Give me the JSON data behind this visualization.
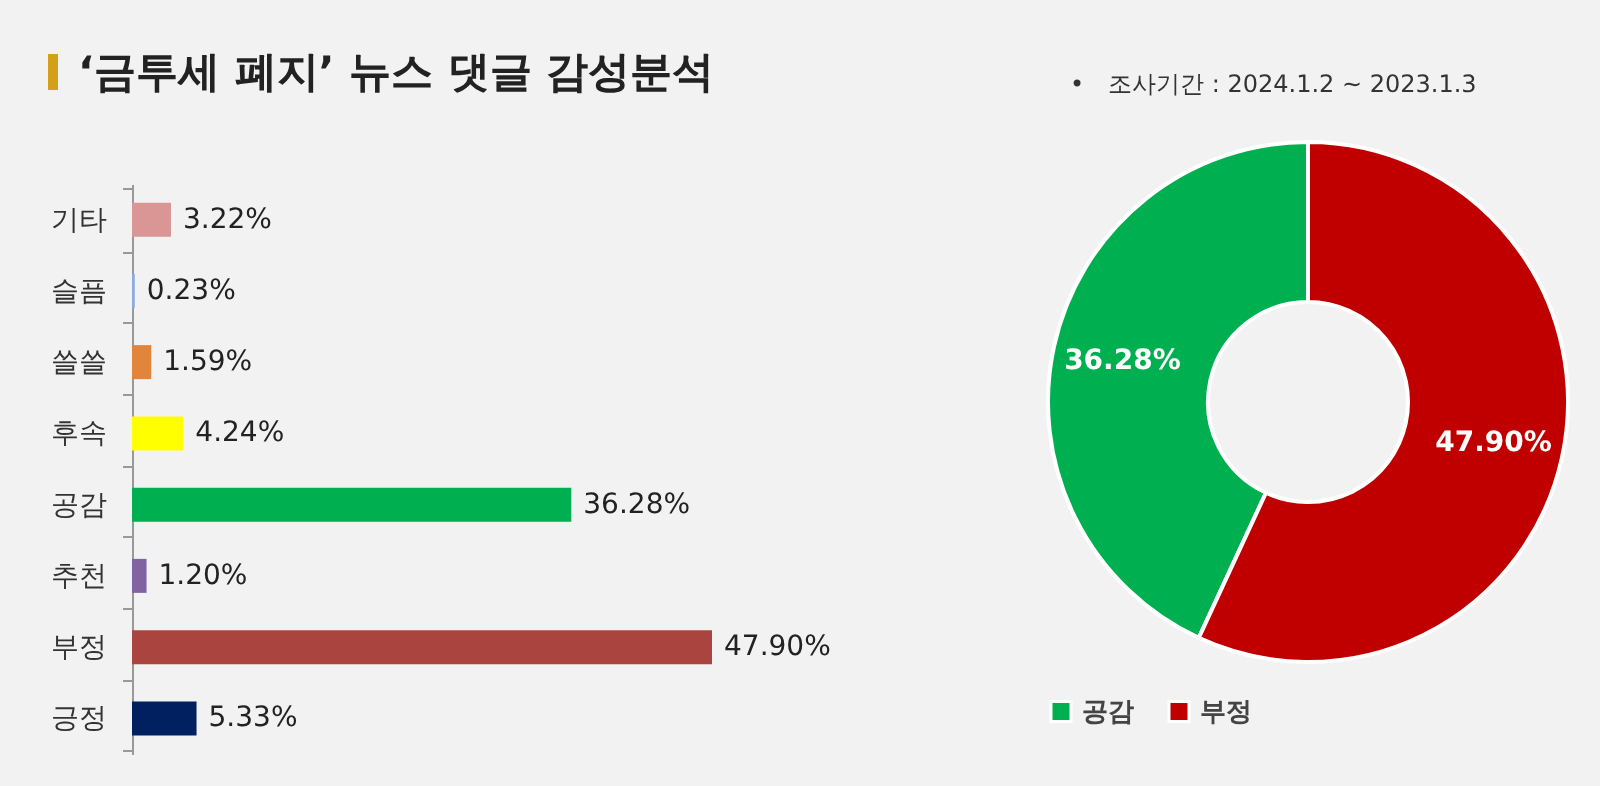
{
  "chart_data": [
    {
      "type": "bar",
      "orientation": "horizontal",
      "title": "‘금투세 폐지’ 뉴스 댓글 감성분석",
      "categories": [
        "기타",
        "슬픔",
        "쓸쓸",
        "후속",
        "공감",
        "추천",
        "부정",
        "긍정"
      ],
      "values": [
        3.22,
        0.23,
        1.59,
        4.24,
        36.28,
        1.2,
        47.9,
        5.33
      ],
      "colors": [
        "#d99694",
        "#8faadc",
        "#e2843c",
        "#ffff00",
        "#00b050",
        "#8064a2",
        "#a9443f",
        "#002060"
      ],
      "value_labels": [
        "3.22%",
        "0.23%",
        "1.59%",
        "4.24%",
        "36.28%",
        "1.20%",
        "47.90%",
        "5.33%"
      ]
    },
    {
      "type": "donut",
      "annotations": [
        "•　조사기간 : 2024.1.2 ~ 2023.1.3"
      ],
      "categories": [
        "공감",
        "부정"
      ],
      "values": [
        36.28,
        47.9
      ],
      "colors": [
        "#00b050",
        "#c00000"
      ],
      "value_labels": [
        "36.28%",
        "47.90%"
      ],
      "legend": "bottom"
    }
  ]
}
